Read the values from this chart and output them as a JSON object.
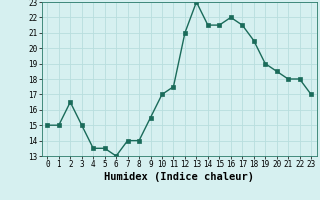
{
  "x": [
    0,
    1,
    2,
    3,
    4,
    5,
    6,
    7,
    8,
    9,
    10,
    11,
    12,
    13,
    14,
    15,
    16,
    17,
    18,
    19,
    20,
    21,
    22,
    23
  ],
  "y": [
    15,
    15,
    16.5,
    15,
    13.5,
    13.5,
    13,
    14,
    14,
    15.5,
    17,
    17.5,
    21,
    23,
    21.5,
    21.5,
    22,
    21.5,
    20.5,
    19,
    18.5,
    18,
    18,
    17
  ],
  "line_color": "#1a6b5a",
  "marker": "s",
  "marker_size": 2.5,
  "bg_color": "#d6f0f0",
  "grid_color": "#b8dede",
  "xlabel": "Humidex (Indice chaleur)",
  "xlim": [
    -0.5,
    23.5
  ],
  "ylim": [
    13,
    23
  ],
  "yticks": [
    13,
    14,
    15,
    16,
    17,
    18,
    19,
    20,
    21,
    22,
    23
  ],
  "xticks": [
    0,
    1,
    2,
    3,
    4,
    5,
    6,
    7,
    8,
    9,
    10,
    11,
    12,
    13,
    14,
    15,
    16,
    17,
    18,
    19,
    20,
    21,
    22,
    23
  ],
  "xlabel_fontsize": 7.5,
  "tick_fontsize": 5.5,
  "line_width": 1.0
}
